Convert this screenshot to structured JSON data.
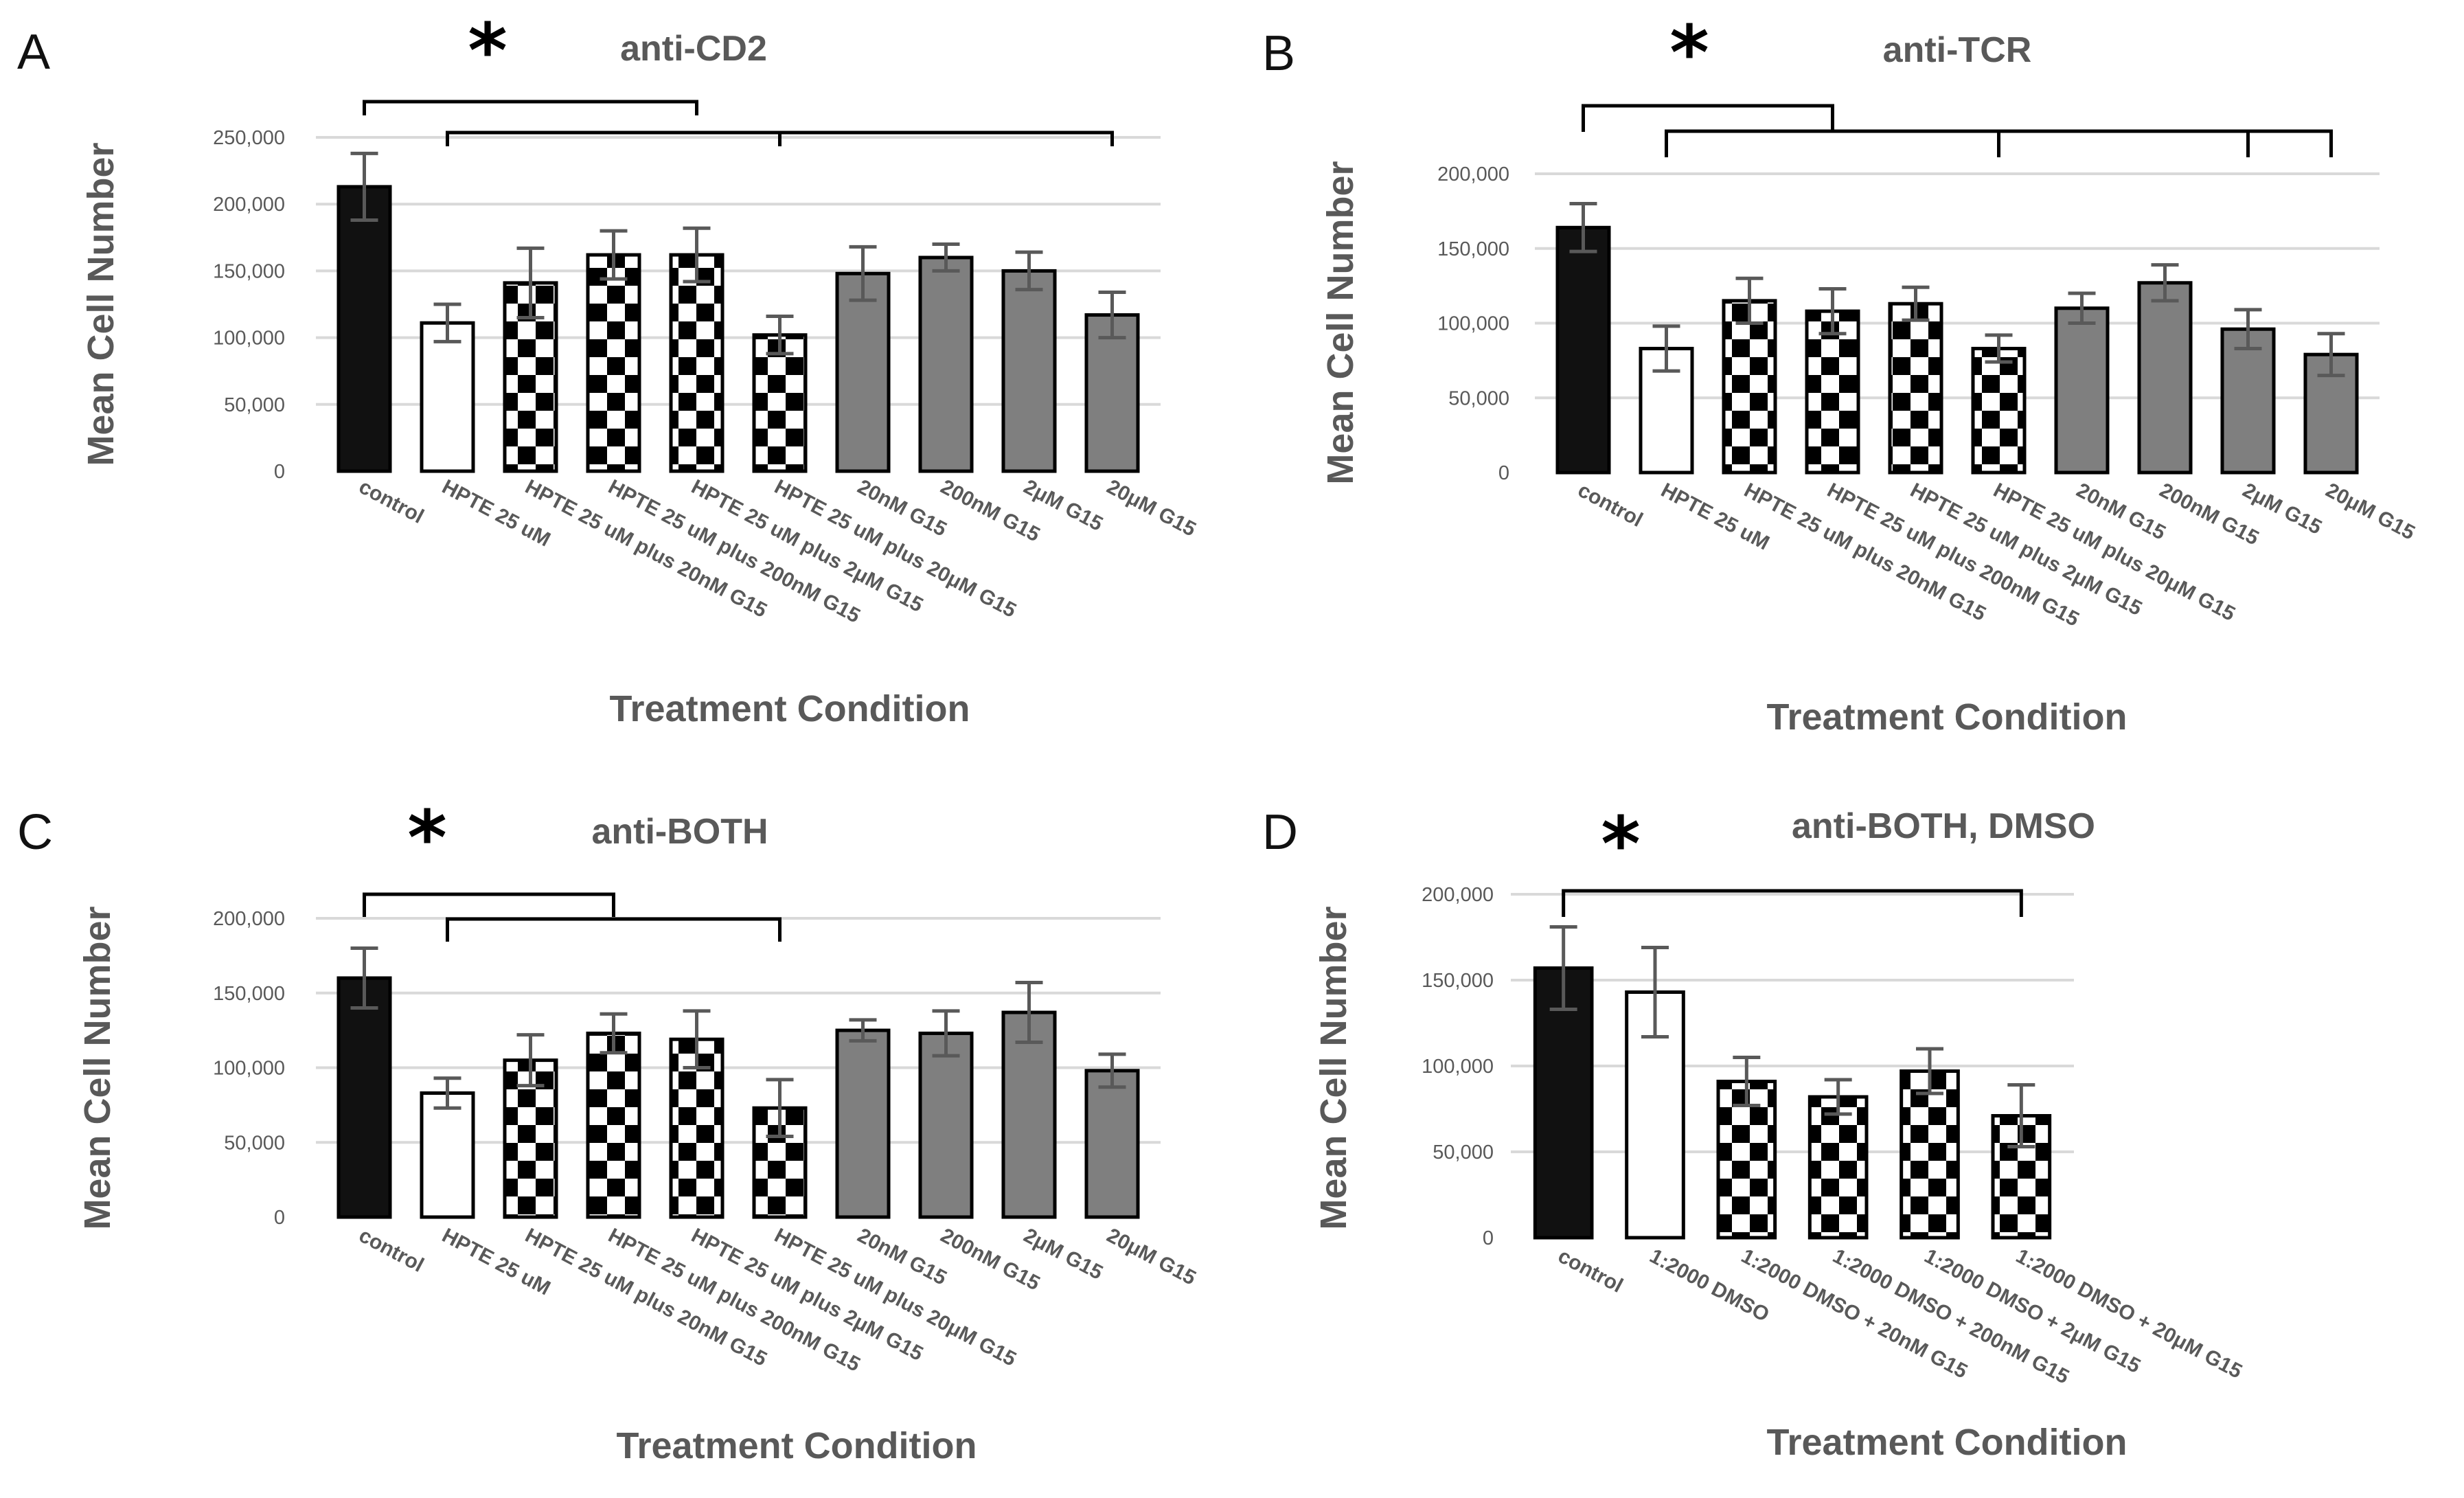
{
  "figure_title": "",
  "chart_data": [
    {
      "panel": "A",
      "type": "bar",
      "title": "anti-CD2",
      "xlabel": "Treatment Condition",
      "ylabel": "Mean Cell Number",
      "ylim": [
        0,
        250000
      ],
      "yticks": [
        "0",
        "50,000",
        "100,000",
        "150,000",
        "200,000",
        "250,000"
      ],
      "yticks_values": [
        0,
        50000,
        100000,
        150000,
        200000,
        250000
      ],
      "categories": [
        "control",
        "HPTE 25 uM",
        "HPTE 25 uM plus 20nM G15",
        "HPTE 25 uM plus 200nM G15",
        "HPTE 25 uM plus 2μM G15",
        "HPTE 25 uM plus 20μM G15",
        "20nM G15",
        "200nM G15",
        "2μM G15",
        "20μM G15"
      ],
      "values": [
        213000,
        111000,
        141000,
        162000,
        162000,
        102000,
        148000,
        160000,
        150000,
        117000
      ],
      "errors": [
        25000,
        14000,
        26000,
        18000,
        20000,
        14000,
        20000,
        10000,
        14000,
        17000
      ],
      "fills": [
        "black",
        "white",
        "checker",
        "checker",
        "checker",
        "checker",
        "gray",
        "gray",
        "gray",
        "gray"
      ],
      "significance": {
        "symbol": "*",
        "brackets": [
          {
            "from": 0,
            "to": 4
          },
          {
            "from": 1,
            "to": 9,
            "drops": [
              5
            ]
          }
        ]
      }
    },
    {
      "panel": "B",
      "type": "bar",
      "title": "anti-TCR",
      "xlabel": "Treatment Condition",
      "ylabel": "Mean Cell Number",
      "ylim": [
        0,
        200000
      ],
      "yticks": [
        "0",
        "50,000",
        "100,000",
        "150,000",
        "200,000"
      ],
      "yticks_values": [
        0,
        50000,
        100000,
        150000,
        200000
      ],
      "categories": [
        "control",
        "HPTE 25 uM",
        "HPTE 25 uM plus 20nM G15",
        "HPTE 25 uM plus 200nM G15",
        "HPTE 25 uM plus 2μM G15",
        "HPTE 25 uM plus 20μM G15",
        "20nM G15",
        "200nM G15",
        "2μM G15",
        "20μM G15"
      ],
      "values": [
        164000,
        83000,
        115000,
        108000,
        113000,
        83000,
        110000,
        127000,
        96000,
        79000
      ],
      "errors": [
        16000,
        15000,
        15000,
        15000,
        11000,
        9000,
        10000,
        12000,
        13000,
        14000
      ],
      "fills": [
        "black",
        "white",
        "checker",
        "checker",
        "checker",
        "checker",
        "gray",
        "gray",
        "gray",
        "gray"
      ],
      "significance": {
        "symbol": "*",
        "brackets": [
          {
            "from": 0,
            "to": 3
          },
          {
            "from": 1,
            "to": 9,
            "drops": [
              5,
              8
            ]
          }
        ]
      }
    },
    {
      "panel": "C",
      "type": "bar",
      "title": "anti-BOTH",
      "xlabel": "Treatment Condition",
      "ylabel": "Mean Cell Number",
      "ylim": [
        0,
        200000
      ],
      "yticks": [
        "0",
        "50,000",
        "100,000",
        "150,000",
        "200,000"
      ],
      "yticks_values": [
        0,
        50000,
        100000,
        150000,
        200000
      ],
      "categories": [
        "control",
        "HPTE 25 uM",
        "HPTE 25 uM plus 20nM G15",
        "HPTE 25 uM plus 200nM G15",
        "HPTE 25 uM plus 2μM G15",
        "HPTE 25 uM plus 20μM G15",
        "20nM G15",
        "200nM G15",
        "2μM G15",
        "20μM G15"
      ],
      "values": [
        160000,
        83000,
        105000,
        123000,
        119000,
        73000,
        125000,
        123000,
        137000,
        98000
      ],
      "errors": [
        20000,
        10000,
        17000,
        13000,
        19000,
        19000,
        7000,
        15000,
        20000,
        11000
      ],
      "fills": [
        "black",
        "white",
        "checker",
        "checker",
        "checker",
        "checker",
        "gray",
        "gray",
        "gray",
        "gray"
      ],
      "significance": {
        "symbol": "*",
        "brackets": [
          {
            "from": 0,
            "to": 3
          },
          {
            "from": 1,
            "to": 5
          }
        ]
      }
    },
    {
      "panel": "D",
      "type": "bar",
      "title": "anti-BOTH, DMSO",
      "xlabel": "Treatment Condition",
      "ylabel": "Mean Cell Number",
      "ylim": [
        0,
        200000
      ],
      "yticks": [
        "0",
        "50,000",
        "100,000",
        "150,000",
        "200,000"
      ],
      "yticks_values": [
        0,
        50000,
        100000,
        150000,
        200000
      ],
      "categories": [
        "control",
        "1:2000 DMSO",
        "1:2000 DMSO + 20nM G15",
        "1:2000 DMSO + 200nM G15",
        "1:2000 DMSO + 2μM G15",
        "1:2000 DMSO + 20μM G15"
      ],
      "values": [
        157000,
        143000,
        91000,
        82000,
        97000,
        71000
      ],
      "errors": [
        24000,
        26000,
        14000,
        10000,
        13000,
        18000
      ],
      "fills": [
        "black",
        "white",
        "checker",
        "checker",
        "checker",
        "checker"
      ],
      "significance": {
        "symbol": "*",
        "brackets": [
          {
            "from": 0,
            "to": 5
          }
        ]
      }
    }
  ]
}
